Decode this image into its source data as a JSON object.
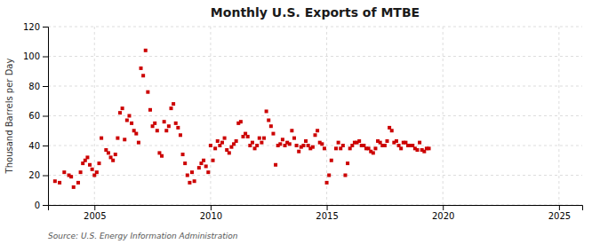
{
  "chart_data": {
    "type": "scatter",
    "title": "Monthly U.S. Exports of MTBE",
    "ylabel": "Thousand Barrels per Day",
    "annotations": [
      "Source: U.S. Energy Information Administration"
    ],
    "color": "#cc0000",
    "marker": "square",
    "grid": true,
    "xlim": [
      2003.0,
      2026.0
    ],
    "ylim": [
      0,
      120
    ],
    "xticks": [
      2005,
      2010,
      2015,
      2020,
      2025
    ],
    "yticks": [
      0,
      20,
      40,
      60,
      80,
      100,
      120
    ],
    "x": [
      2003.3,
      2003.5,
      2003.7,
      2003.9,
      2004.0,
      2004.1,
      2004.3,
      2004.4,
      2004.5,
      2004.6,
      2004.7,
      2004.8,
      2004.9,
      2005.0,
      2005.1,
      2005.2,
      2005.3,
      2005.5,
      2005.6,
      2005.7,
      2005.8,
      2005.9,
      2006.0,
      2006.1,
      2006.2,
      2006.3,
      2006.4,
      2006.5,
      2006.6,
      2006.7,
      2006.8,
      2006.9,
      2007.0,
      2007.1,
      2007.2,
      2007.3,
      2007.4,
      2007.5,
      2007.6,
      2007.7,
      2007.8,
      2007.9,
      2008.0,
      2008.1,
      2008.2,
      2008.3,
      2008.4,
      2008.5,
      2008.6,
      2008.7,
      2008.8,
      2008.9,
      2009.0,
      2009.1,
      2009.2,
      2009.3,
      2009.5,
      2009.6,
      2009.7,
      2009.8,
      2009.9,
      2010.0,
      2010.1,
      2010.2,
      2010.3,
      2010.4,
      2010.5,
      2010.6,
      2010.7,
      2010.8,
      2010.9,
      2011.0,
      2011.1,
      2011.2,
      2011.3,
      2011.4,
      2011.5,
      2011.6,
      2011.7,
      2011.8,
      2011.9,
      2012.0,
      2012.1,
      2012.2,
      2012.3,
      2012.4,
      2012.5,
      2012.6,
      2012.7,
      2012.8,
      2012.9,
      2013.0,
      2013.1,
      2013.2,
      2013.3,
      2013.4,
      2013.5,
      2013.6,
      2013.7,
      2013.8,
      2013.9,
      2014.0,
      2014.1,
      2014.2,
      2014.3,
      2014.4,
      2014.5,
      2014.6,
      2014.7,
      2014.8,
      2014.9,
      2015.0,
      2015.1,
      2015.2,
      2015.4,
      2015.5,
      2015.6,
      2015.7,
      2015.8,
      2015.9,
      2016.0,
      2016.1,
      2016.2,
      2016.3,
      2016.4,
      2016.5,
      2016.6,
      2016.7,
      2016.8,
      2016.9,
      2017.0,
      2017.1,
      2017.2,
      2017.3,
      2017.4,
      2017.5,
      2017.6,
      2017.7,
      2017.8,
      2017.9,
      2018.0,
      2018.1,
      2018.2,
      2018.3,
      2018.4,
      2018.5,
      2018.6,
      2018.7,
      2018.8,
      2018.9,
      2019.0,
      2019.1,
      2019.2,
      2019.3,
      2019.4
    ],
    "values": [
      16,
      15,
      22,
      20,
      19,
      12,
      15,
      22,
      28,
      30,
      32,
      27,
      24,
      20,
      22,
      28,
      45,
      37,
      35,
      32,
      30,
      34,
      45,
      62,
      65,
      44,
      57,
      60,
      55,
      50,
      48,
      42,
      92,
      87,
      104,
      76,
      64,
      53,
      55,
      50,
      35,
      33,
      56,
      50,
      53,
      65,
      68,
      55,
      52,
      47,
      34,
      28,
      20,
      15,
      22,
      16,
      25,
      28,
      30,
      26,
      22,
      40,
      30,
      38,
      43,
      40,
      42,
      45,
      37,
      35,
      39,
      41,
      43,
      55,
      56,
      46,
      48,
      46,
      40,
      42,
      38,
      40,
      45,
      42,
      45,
      63,
      57,
      53,
      48,
      27,
      40,
      41,
      44,
      40,
      42,
      41,
      50,
      45,
      40,
      36,
      39,
      40,
      43,
      40,
      38,
      39,
      47,
      50,
      42,
      41,
      38,
      15,
      20,
      30,
      38,
      42,
      38,
      40,
      20,
      28,
      38,
      40,
      42,
      42,
      43,
      40,
      40,
      38,
      38,
      36,
      35,
      38,
      43,
      42,
      40,
      40,
      43,
      52,
      50,
      42,
      43,
      40,
      38,
      42,
      42,
      40,
      40,
      40,
      38,
      37,
      42,
      37,
      36,
      38,
      38
    ]
  }
}
